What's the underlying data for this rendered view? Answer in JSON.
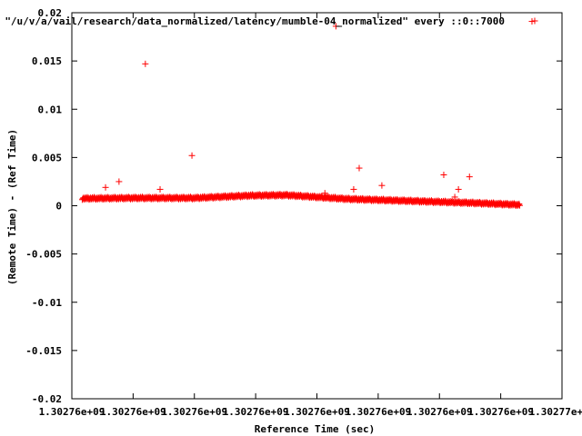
{
  "chart_data": {
    "type": "scatter",
    "xlabel": "Reference Time (sec)",
    "ylabel": "(Remote Time) - (Ref Time)",
    "ylim": [
      -0.02,
      0.02
    ],
    "y_ticks": [
      -0.02,
      -0.015,
      -0.01,
      -0.005,
      0,
      0.005,
      0.01,
      0.015,
      0.02
    ],
    "y_tick_labels": [
      "-0.02",
      "-0.015",
      "-0.01",
      "-0.005",
      "0",
      "0.005",
      "0.01",
      "0.015",
      "0.02"
    ],
    "x_ticks": [
      0,
      1,
      2,
      3,
      4,
      5,
      6,
      7,
      8
    ],
    "x_tick_labels": [
      "1.30276e+09",
      "1.30276e+09",
      "1.30276e+09",
      "1.30276e+09",
      "1.30276e+09",
      "1.30276e+09",
      "1.30276e+09",
      "1.30276e+09",
      "1.30277e+09"
    ],
    "xlim": [
      0,
      8
    ],
    "legend": "top-right",
    "grid": false,
    "series": [
      {
        "name": "\"/u/v/a/vail/research/data_normalized/latency/mumble-04_normalized\" every ::0::7000",
        "color": "#ff0000",
        "marker": "plus",
        "band": {
          "x_start": 0.17,
          "x_end": 7.31,
          "profile": [
            [
              0.17,
              0.00075
            ],
            [
              1.0,
              0.0008
            ],
            [
              2.0,
              0.0008
            ],
            [
              2.9,
              0.00105
            ],
            [
              3.5,
              0.0011
            ],
            [
              4.5,
              0.0007
            ],
            [
              5.5,
              0.0005
            ],
            [
              6.5,
              0.0003
            ],
            [
              7.31,
              0.0001
            ]
          ]
        },
        "outliers": [
          [
            0.55,
            0.0019
          ],
          [
            0.77,
            0.0025
          ],
          [
            1.2,
            0.0147
          ],
          [
            1.44,
            0.0017
          ],
          [
            1.96,
            0.0052
          ],
          [
            4.13,
            0.0013
          ],
          [
            4.31,
            0.0186
          ],
          [
            4.6,
            0.0017
          ],
          [
            4.69,
            0.0039
          ],
          [
            5.06,
            0.0021
          ],
          [
            6.07,
            0.0032
          ],
          [
            6.25,
            0.0009
          ],
          [
            6.31,
            0.0017
          ],
          [
            6.49,
            0.003
          ],
          [
            7.51,
            0.0191
          ]
        ]
      }
    ]
  }
}
